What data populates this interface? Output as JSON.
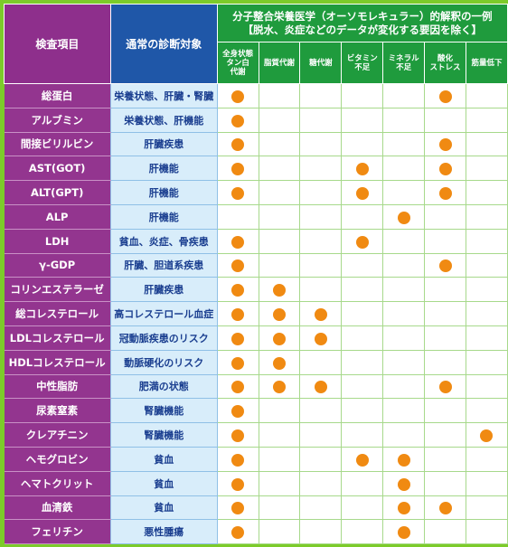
{
  "header": {
    "item": "検査項目",
    "diagnosis": "通常の診断対象",
    "molecular_line1": "分子整合栄養医学（オーソモレキュラー）的解釈の一例",
    "molecular_line2": "【脱水、炎症などのデータが変化する要因を除く】",
    "columns": [
      {
        "line1": "全身状態",
        "line2": "タン白",
        "line3": "代謝"
      },
      {
        "line1": "脂質代謝",
        "line2": "",
        "line3": ""
      },
      {
        "line1": "糖代謝",
        "line2": "",
        "line3": ""
      },
      {
        "line1": "ビタミン",
        "line2": "不足",
        "line3": ""
      },
      {
        "line1": "ミネラル",
        "line2": "不足",
        "line3": ""
      },
      {
        "line1": "酸化",
        "line2": "ストレス",
        "line3": ""
      },
      {
        "line1": "筋量低下",
        "line2": "",
        "line3": ""
      }
    ]
  },
  "colors": {
    "item_bg": "#93358f",
    "diagnosis_bg": "#d8edfa",
    "header_green": "#1f9b3d",
    "frame_green": "#7ccb2a",
    "dot": "#f08a12"
  },
  "rows": [
    {
      "item": "総蛋白",
      "diagnosis": "栄養状態、肝臓・腎臓",
      "marks": [
        1,
        0,
        0,
        0,
        0,
        1,
        0
      ]
    },
    {
      "item": "アルブミン",
      "diagnosis": "栄養状態、肝機能",
      "marks": [
        1,
        0,
        0,
        0,
        0,
        0,
        0
      ]
    },
    {
      "item": "間接ビリルビン",
      "diagnosis": "肝臓疾患",
      "marks": [
        1,
        0,
        0,
        0,
        0,
        1,
        0
      ]
    },
    {
      "item": "AST(GOT)",
      "diagnosis": "肝機能",
      "marks": [
        1,
        0,
        0,
        1,
        0,
        1,
        0
      ]
    },
    {
      "item": "ALT(GPT)",
      "diagnosis": "肝機能",
      "marks": [
        1,
        0,
        0,
        1,
        0,
        1,
        0
      ]
    },
    {
      "item": "ALP",
      "diagnosis": "肝機能",
      "marks": [
        0,
        0,
        0,
        0,
        1,
        0,
        0
      ]
    },
    {
      "item": "LDH",
      "diagnosis": "貧血、炎症、骨疾患",
      "marks": [
        1,
        0,
        0,
        1,
        0,
        0,
        0
      ]
    },
    {
      "item": "γ-GDP",
      "diagnosis": "肝臓、胆道系疾患",
      "marks": [
        1,
        0,
        0,
        0,
        0,
        1,
        0
      ]
    },
    {
      "item": "コリンエステラーゼ",
      "diagnosis": "肝臓疾患",
      "marks": [
        1,
        1,
        0,
        0,
        0,
        0,
        0
      ]
    },
    {
      "item": "総コレステロール",
      "diagnosis": "高コレステロール血症",
      "marks": [
        1,
        1,
        1,
        0,
        0,
        0,
        0
      ]
    },
    {
      "item": "LDLコレステロール",
      "diagnosis": "冠動脈疾患のリスク",
      "marks": [
        1,
        1,
        1,
        0,
        0,
        0,
        0
      ]
    },
    {
      "item": "HDLコレステロール",
      "diagnosis": "動脈硬化のリスク",
      "marks": [
        1,
        1,
        0,
        0,
        0,
        0,
        0
      ]
    },
    {
      "item": "中性脂肪",
      "diagnosis": "肥満の状態",
      "marks": [
        1,
        1,
        1,
        0,
        0,
        1,
        0
      ]
    },
    {
      "item": "尿素窒素",
      "diagnosis": "腎臓機能",
      "marks": [
        1,
        0,
        0,
        0,
        0,
        0,
        0
      ]
    },
    {
      "item": "クレアチニン",
      "diagnosis": "腎臓機能",
      "marks": [
        1,
        0,
        0,
        0,
        0,
        0,
        1
      ]
    },
    {
      "item": "ヘモグロビン",
      "diagnosis": "貧血",
      "marks": [
        1,
        0,
        0,
        1,
        1,
        0,
        0
      ]
    },
    {
      "item": "ヘマトクリット",
      "diagnosis": "貧血",
      "marks": [
        1,
        0,
        0,
        0,
        1,
        0,
        0
      ]
    },
    {
      "item": "血清鉄",
      "diagnosis": "貧血",
      "marks": [
        1,
        0,
        0,
        0,
        1,
        1,
        0
      ]
    },
    {
      "item": "フェリチン",
      "diagnosis": "悪性腫瘍",
      "marks": [
        1,
        0,
        0,
        0,
        1,
        0,
        0
      ]
    }
  ]
}
